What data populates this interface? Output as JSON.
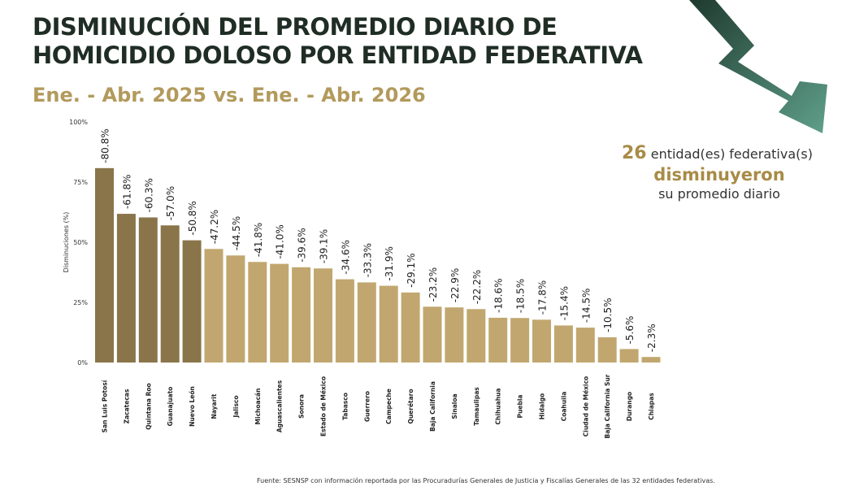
{
  "header": {
    "title_line1": "DISMINUCIÓN DEL PROMEDIO DIARIO DE",
    "title_line2": "HOMICIDIO DOLOSO POR ENTIDAD FEDERATIVA",
    "subtitle": "Ene. - Abr. 2025 vs. Ene. - Abr. 2026"
  },
  "callout": {
    "count": "26",
    "line1_text": "entidad(es) federativa(s)",
    "line2": "disminuyeron",
    "line3": "su promedio diario"
  },
  "footer": {
    "source": "Fuente: SESNSP con información reportada por las Procuradurías Generales de Justicia y Fiscalías Generales de las 32 entidades federativas."
  },
  "colors": {
    "title": "#1f2d25",
    "accent_gold": "#a88b46",
    "bar_top5": "#8a744a",
    "bar_rest": "#c1a76f",
    "arrow_dark": "#1f3a2f",
    "arrow_light": "#5fa08a"
  },
  "chart_data": {
    "type": "bar",
    "ylabel": "Disminuciones (%)",
    "ylim": [
      0,
      100
    ],
    "yticks": [
      "0%",
      "25%",
      "50%",
      "75%",
      "100%"
    ],
    "categories": [
      "San Luis Potosí",
      "Zacatecas",
      "Quintana Roo",
      "Guanajuato",
      "Nuevo León",
      "Nayarit",
      "Jalisco",
      "Michoacán",
      "Aguascalientes",
      "Sonora",
      "Estado de México",
      "Tabasco",
      "Guerrero",
      "Campeche",
      "Querétaro",
      "Baja California",
      "Sinaloa",
      "Tamaulipas",
      "Chihuahua",
      "Puebla",
      "Hidalgo",
      "Coahuila",
      "Ciudad de México",
      "Baja California Sur",
      "Durango",
      "Chiapas"
    ],
    "values": [
      80.8,
      61.8,
      60.3,
      57.0,
      50.8,
      47.2,
      44.5,
      41.8,
      41.0,
      39.6,
      39.1,
      34.6,
      33.3,
      31.9,
      29.1,
      23.2,
      22.9,
      22.2,
      18.6,
      18.5,
      17.8,
      15.4,
      14.5,
      10.5,
      5.6,
      2.3
    ],
    "data_labels": [
      "-80.8%",
      "-61.8%",
      "-60.3%",
      "-57.0%",
      "-50.8%",
      "-47.2%",
      "-44.5%",
      "-41.8%",
      "-41.0%",
      "-39.6%",
      "-39.1%",
      "-34.6%",
      "-33.3%",
      "-31.9%",
      "-29.1%",
      "-23.2%",
      "-22.9%",
      "-22.2%",
      "-18.6%",
      "-18.5%",
      "-17.8%",
      "-15.4%",
      "-14.5%",
      "-10.5%",
      "-5.6%",
      "-2.3%"
    ],
    "highlight_top": 5,
    "grid": false,
    "legend": "none"
  }
}
